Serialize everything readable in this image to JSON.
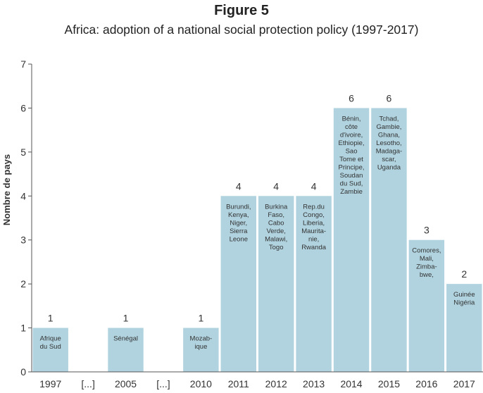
{
  "title": "Figure 5",
  "subtitle": "Africa: adoption of a national social protection policy (1997-2017)",
  "chart_data": {
    "type": "bar",
    "ylabel": "Nombre de pays",
    "xlabel": "",
    "ylim": [
      0,
      7
    ],
    "yticks": [
      0,
      1,
      2,
      3,
      4,
      5,
      6,
      7
    ],
    "grid": false,
    "bar_color": "#b0d3df",
    "categories": [
      "1997",
      "[...]",
      "2005",
      "[...]",
      "2010",
      "2011",
      "2012",
      "2013",
      "2014",
      "2015",
      "2016",
      "2017"
    ],
    "values": [
      1,
      null,
      1,
      null,
      1,
      4,
      4,
      4,
      6,
      6,
      3,
      2
    ],
    "value_labels": [
      "1",
      "",
      "1",
      "",
      "1",
      "4",
      "4",
      "4",
      "6",
      "6",
      "3",
      "2"
    ],
    "country_labels": [
      [
        "Afrique",
        "du Sud"
      ],
      [],
      [
        "Sénégal"
      ],
      [],
      [
        "Mozab-",
        "ique"
      ],
      [
        "Burundi,",
        "Kenya,",
        "Niger,",
        "Sierra",
        "Leone"
      ],
      [
        "Burkina",
        "Faso,",
        "Cabo",
        "Verde,",
        "Malawi,",
        "Togo"
      ],
      [
        "Rep.du",
        "Congo,",
        "Liberia,",
        "Maurita-",
        "nie,",
        "Rwanda"
      ],
      [
        "Bénin,",
        "côte",
        "d'ivoire,",
        "Ethiopie,",
        "Sao",
        "Tome et",
        "Principe,",
        "Soudan",
        "du Sud,",
        "Zambie"
      ],
      [
        "Tchad,",
        "Gambie,",
        "Ghana,",
        "Lesotho,",
        "Madaga-",
        "scar,",
        "Uganda"
      ],
      [
        "Comores,",
        "Mali,",
        "Zimba-",
        "bwe,"
      ],
      [
        "Guinée",
        "Nigéria"
      ]
    ]
  }
}
